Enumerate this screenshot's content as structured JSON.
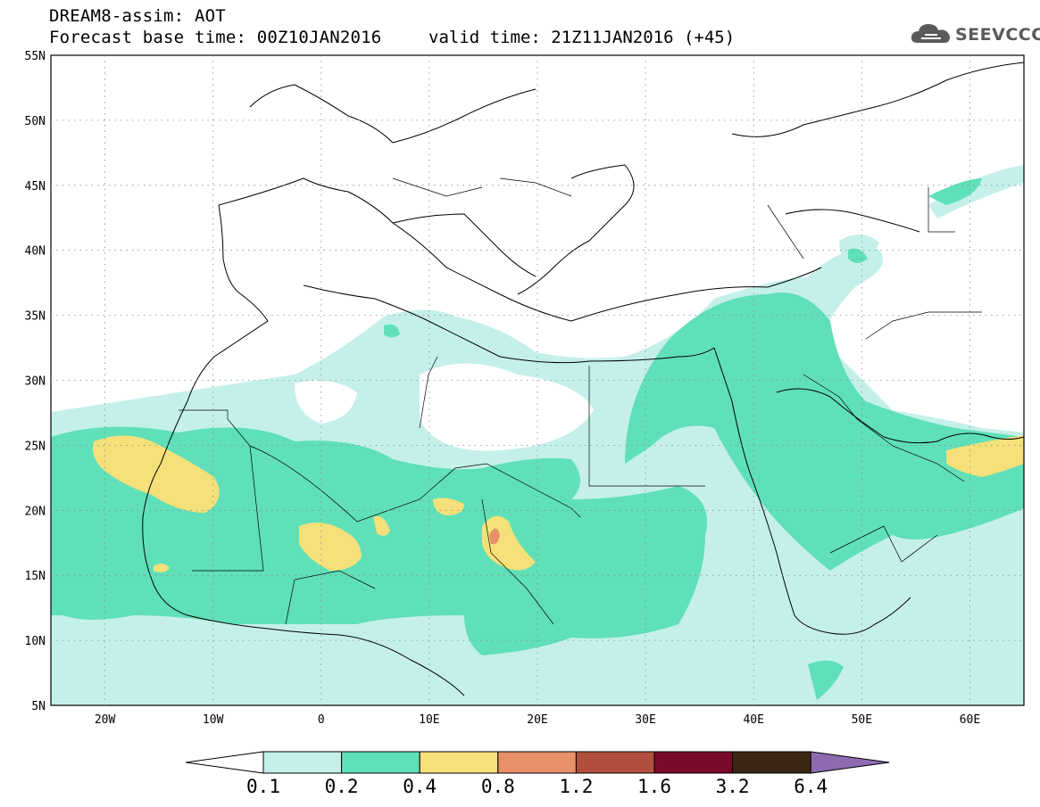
{
  "header": {
    "line1": "DREAM8-assim: AOT",
    "line2": "Forecast base time: 00Z10JAN2016",
    "valid": "valid time: 21Z11JAN2016 (+45)"
  },
  "logo": {
    "text": "SEEVCCC",
    "icon": "cloud-icon"
  },
  "map": {
    "lon_range": [
      -25,
      65
    ],
    "lat_range": [
      5,
      55
    ],
    "lat_labels": [
      "55N",
      "50N",
      "45N",
      "40N",
      "35N",
      "30N",
      "25N",
      "20N",
      "15N",
      "10N",
      "5N"
    ],
    "lon_labels": [
      "20W",
      "10W",
      "0",
      "10E",
      "20E",
      "30E",
      "40E",
      "50E",
      "60E"
    ],
    "grid": "dotted"
  },
  "legend": {
    "levels": [
      "0.1",
      "0.2",
      "0.4",
      "0.8",
      "1.2",
      "1.6",
      "3.2",
      "6.4"
    ],
    "colors": {
      "lt01": "#ffffff",
      "c01": "#c5f0ea",
      "c02": "#5fe0b8",
      "c04": "#f5e07a",
      "c08": "#e8906a",
      "c12": "#b0503c",
      "c16": "#7a0a2a",
      "c32": "#3d2614",
      "gt64": "#8e6bb0"
    }
  }
}
